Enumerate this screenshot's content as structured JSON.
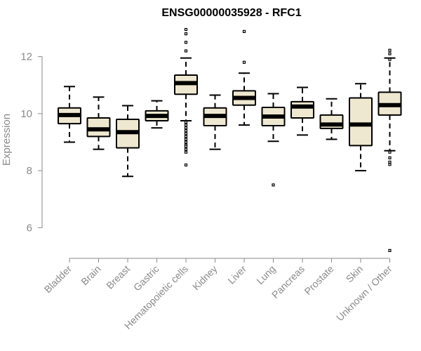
{
  "title": "ENSG00000035928 - RFC1",
  "chart_data": {
    "type": "boxplot",
    "title": "ENSG00000035928 - RFC1",
    "xlabel": "",
    "ylabel": "Expression",
    "ylim": [
      5,
      13
    ],
    "yticks": [
      6,
      8,
      10,
      12
    ],
    "grid": false,
    "box_fill": "#efe8d0",
    "box_stroke": "#000000",
    "categories": [
      "Bladder",
      "Brain",
      "Breast",
      "Gastric",
      "Hematopoietic cells",
      "Kidney",
      "Liver",
      "Lung",
      "Pancreas",
      "Prostate",
      "Skin",
      "Unknown / Other"
    ],
    "boxes": [
      {
        "category": "Bladder",
        "whisker_low": 9.0,
        "q1": 9.65,
        "median": 9.95,
        "q3": 10.2,
        "whisker_high": 10.95,
        "outliers": []
      },
      {
        "category": "Brain",
        "whisker_low": 8.75,
        "q1": 9.2,
        "median": 9.45,
        "q3": 9.85,
        "whisker_high": 10.58,
        "outliers": []
      },
      {
        "category": "Breast",
        "whisker_low": 7.8,
        "q1": 8.8,
        "median": 9.35,
        "q3": 9.8,
        "whisker_high": 10.28,
        "outliers": []
      },
      {
        "category": "Gastric",
        "whisker_low": 9.5,
        "q1": 9.75,
        "median": 9.92,
        "q3": 10.1,
        "whisker_high": 10.45,
        "outliers": []
      },
      {
        "category": "Hematopoietic cells",
        "whisker_low": 9.75,
        "q1": 10.68,
        "median": 11.07,
        "q3": 11.35,
        "whisker_high": 11.95,
        "outliers": [
          12.95,
          12.8,
          12.5,
          12.2,
          9.7,
          9.6,
          9.5,
          9.4,
          9.3,
          9.2,
          9.1,
          9.0,
          8.9,
          8.85,
          8.75,
          8.65,
          8.2
        ]
      },
      {
        "category": "Kidney",
        "whisker_low": 8.75,
        "q1": 9.58,
        "median": 9.92,
        "q3": 10.2,
        "whisker_high": 10.65,
        "outliers": []
      },
      {
        "category": "Liver",
        "whisker_low": 9.6,
        "q1": 10.3,
        "median": 10.55,
        "q3": 10.8,
        "whisker_high": 11.42,
        "outliers": [
          12.88,
          11.8
        ]
      },
      {
        "category": "Lung",
        "whisker_low": 9.03,
        "q1": 9.58,
        "median": 9.9,
        "q3": 10.22,
        "whisker_high": 10.7,
        "outliers": [
          7.5
        ]
      },
      {
        "category": "Pancreas",
        "whisker_low": 9.25,
        "q1": 9.85,
        "median": 10.25,
        "q3": 10.42,
        "whisker_high": 10.92,
        "outliers": []
      },
      {
        "category": "Prostate",
        "whisker_low": 9.1,
        "q1": 9.48,
        "median": 9.62,
        "q3": 9.95,
        "whisker_high": 10.52,
        "outliers": []
      },
      {
        "category": "Skin",
        "whisker_low": 8.0,
        "q1": 8.88,
        "median": 9.62,
        "q3": 10.55,
        "whisker_high": 11.05,
        "outliers": []
      },
      {
        "category": "Unknown / Other",
        "whisker_low": 8.7,
        "q1": 9.95,
        "median": 10.3,
        "q3": 10.75,
        "whisker_high": 11.95,
        "outliers": [
          12.22,
          12.1,
          11.9,
          8.65,
          8.45,
          8.3,
          8.22,
          5.2
        ]
      }
    ]
  }
}
